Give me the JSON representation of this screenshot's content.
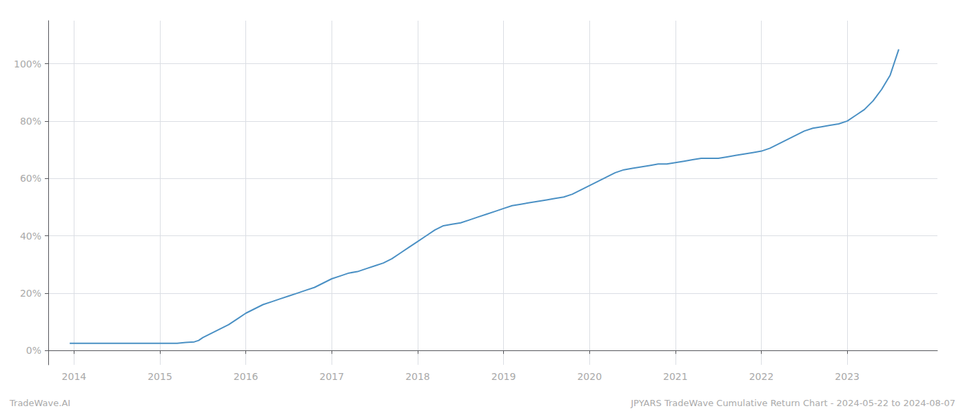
{
  "chart_data": {
    "type": "line",
    "color": "#4a90c4",
    "annotations": [
      "TradeWave.AI",
      "JPYARS TradeWave Cumulative Return Chart - 2024-05-22 to 2024-08-07"
    ],
    "x": [
      2013.95,
      2014.1,
      2014.3,
      2014.5,
      2014.7,
      2014.9,
      2015.0,
      2015.1,
      2015.2,
      2015.3,
      2015.4,
      2015.45,
      2015.5,
      2015.6,
      2015.7,
      2015.8,
      2015.9,
      2016.0,
      2016.1,
      2016.2,
      2016.3,
      2016.4,
      2016.5,
      2016.6,
      2016.7,
      2016.8,
      2016.9,
      2017.0,
      2017.1,
      2017.2,
      2017.3,
      2017.4,
      2017.5,
      2017.6,
      2017.7,
      2017.8,
      2017.9,
      2018.0,
      2018.1,
      2018.2,
      2018.3,
      2018.4,
      2018.5,
      2018.6,
      2018.7,
      2018.8,
      2018.9,
      2019.0,
      2019.1,
      2019.2,
      2019.3,
      2019.4,
      2019.5,
      2019.6,
      2019.7,
      2019.8,
      2019.9,
      2020.0,
      2020.1,
      2020.2,
      2020.3,
      2020.4,
      2020.5,
      2020.6,
      2020.7,
      2020.8,
      2020.9,
      2021.0,
      2021.1,
      2021.2,
      2021.3,
      2021.4,
      2021.5,
      2021.6,
      2021.7,
      2021.8,
      2021.9,
      2022.0,
      2022.1,
      2022.2,
      2022.3,
      2022.4,
      2022.5,
      2022.6,
      2022.7,
      2022.8,
      2022.9,
      2023.0,
      2023.1,
      2023.2,
      2023.3,
      2023.4,
      2023.5,
      2023.6
    ],
    "values": [
      2.5,
      2.5,
      2.5,
      2.5,
      2.5,
      2.5,
      2.5,
      2.5,
      2.5,
      2.8,
      3.0,
      3.5,
      4.5,
      6.0,
      7.5,
      9.0,
      11.0,
      13.0,
      14.5,
      16.0,
      17.0,
      18.0,
      19.0,
      20.0,
      21.0,
      22.0,
      23.5,
      25.0,
      26.0,
      27.0,
      27.5,
      28.5,
      29.5,
      30.5,
      32.0,
      34.0,
      36.0,
      38.0,
      40.0,
      42.0,
      43.5,
      44.0,
      44.5,
      45.5,
      46.5,
      47.5,
      48.5,
      49.5,
      50.5,
      51.0,
      51.5,
      52.0,
      52.5,
      53.0,
      53.5,
      54.5,
      56.0,
      57.5,
      59.0,
      60.5,
      62.0,
      63.0,
      63.5,
      64.0,
      64.5,
      65.0,
      65.0,
      65.5,
      66.0,
      66.5,
      67.0,
      67.0,
      67.0,
      67.5,
      68.0,
      68.5,
      69.0,
      69.5,
      70.5,
      72.0,
      73.5,
      75.0,
      76.5,
      77.5,
      78.0,
      78.5,
      79.0,
      80.0,
      82.0,
      84.0,
      87.0,
      91.0,
      96.0,
      105.0
    ],
    "xlim": [
      2013.7,
      2024.05
    ],
    "xticks": [
      2014,
      2015,
      2016,
      2017,
      2018,
      2019,
      2020,
      2021,
      2022,
      2023
    ],
    "ylim": [
      -5,
      115
    ],
    "yticks": [
      {
        "value": 0,
        "label": "0%"
      },
      {
        "value": 20,
        "label": "20%"
      },
      {
        "value": 40,
        "label": "40%"
      },
      {
        "value": 60,
        "label": "60%"
      },
      {
        "value": 80,
        "label": "80%"
      },
      {
        "value": 100,
        "label": "100%"
      }
    ],
    "grid": true
  }
}
